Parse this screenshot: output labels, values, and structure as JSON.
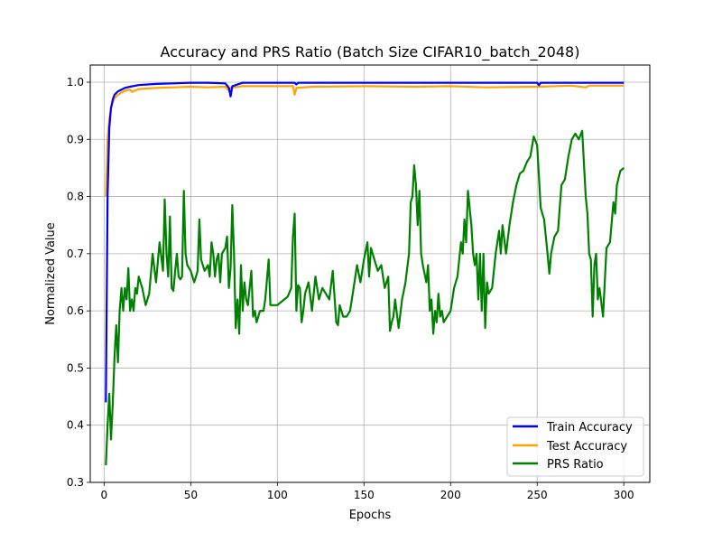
{
  "chart_data": {
    "type": "line",
    "title": "Accuracy and PRS Ratio (Batch Size CIFAR10_batch_2048)",
    "xlabel": "Epochs",
    "ylabel": "Normalized Value",
    "xlim": [
      -8,
      315
    ],
    "ylim": [
      0.3,
      1.03
    ],
    "xticks": [
      0,
      50,
      100,
      150,
      200,
      250,
      300
    ],
    "yticks": [
      0.3,
      0.4,
      0.5,
      0.6,
      0.7,
      0.8,
      0.9,
      1.0
    ],
    "xtick_labels": [
      "0",
      "50",
      "100",
      "150",
      "200",
      "250",
      "300"
    ],
    "ytick_labels": [
      "0.3",
      "0.4",
      "0.5",
      "0.6",
      "0.7",
      "0.8",
      "0.9",
      "1.0"
    ],
    "grid": true,
    "legend_position": "lower-right",
    "series": [
      {
        "name": "Train Accuracy",
        "color": "#0000ff",
        "points": [
          [
            1,
            0.44
          ],
          [
            2,
            0.8
          ],
          [
            3,
            0.92
          ],
          [
            4,
            0.955
          ],
          [
            5,
            0.97
          ],
          [
            6,
            0.978
          ],
          [
            8,
            0.984
          ],
          [
            10,
            0.987
          ],
          [
            12,
            0.99
          ],
          [
            15,
            0.992
          ],
          [
            20,
            0.995
          ],
          [
            30,
            0.997
          ],
          [
            40,
            0.998
          ],
          [
            50,
            0.999
          ],
          [
            60,
            0.999
          ],
          [
            70,
            0.998
          ],
          [
            72,
            0.99
          ],
          [
            73,
            0.975
          ],
          [
            74,
            0.993
          ],
          [
            80,
            0.999
          ],
          [
            100,
            0.999
          ],
          [
            110,
            0.999
          ],
          [
            111,
            0.996
          ],
          [
            112,
            0.999
          ],
          [
            150,
            0.999
          ],
          [
            200,
            0.999
          ],
          [
            250,
            0.999
          ],
          [
            251,
            0.995
          ],
          [
            252,
            0.999
          ],
          [
            300,
            0.999
          ]
        ]
      },
      {
        "name": "Test Accuracy",
        "color": "#ffa500",
        "points": [
          [
            1,
            0.8
          ],
          [
            2,
            0.9
          ],
          [
            3,
            0.935
          ],
          [
            4,
            0.955
          ],
          [
            5,
            0.965
          ],
          [
            6,
            0.972
          ],
          [
            8,
            0.978
          ],
          [
            10,
            0.982
          ],
          [
            12,
            0.985
          ],
          [
            15,
            0.987
          ],
          [
            16,
            0.983
          ],
          [
            20,
            0.988
          ],
          [
            30,
            0.99
          ],
          [
            40,
            0.991
          ],
          [
            50,
            0.992
          ],
          [
            60,
            0.991
          ],
          [
            70,
            0.992
          ],
          [
            72,
            0.985
          ],
          [
            73,
            0.99
          ],
          [
            80,
            0.993
          ],
          [
            100,
            0.993
          ],
          [
            109,
            0.993
          ],
          [
            110,
            0.978
          ],
          [
            111,
            0.99
          ],
          [
            120,
            0.992
          ],
          [
            150,
            0.993
          ],
          [
            180,
            0.992
          ],
          [
            200,
            0.993
          ],
          [
            220,
            0.991
          ],
          [
            250,
            0.992
          ],
          [
            270,
            0.994
          ],
          [
            278,
            0.991
          ],
          [
            280,
            0.994
          ],
          [
            300,
            0.994
          ]
        ]
      },
      {
        "name": "PRS Ratio",
        "color": "#008000",
        "points": [
          [
            1,
            0.33
          ],
          [
            2,
            0.4
          ],
          [
            3,
            0.455
          ],
          [
            4,
            0.375
          ],
          [
            5,
            0.44
          ],
          [
            6,
            0.52
          ],
          [
            7,
            0.575
          ],
          [
            8,
            0.51
          ],
          [
            9,
            0.6
          ],
          [
            10,
            0.64
          ],
          [
            11,
            0.6
          ],
          [
            12,
            0.64
          ],
          [
            13,
            0.62
          ],
          [
            14,
            0.675
          ],
          [
            15,
            0.6
          ],
          [
            16,
            0.62
          ],
          [
            17,
            0.6
          ],
          [
            18,
            0.64
          ],
          [
            19,
            0.63
          ],
          [
            20,
            0.66
          ],
          [
            22,
            0.64
          ],
          [
            24,
            0.61
          ],
          [
            26,
            0.63
          ],
          [
            28,
            0.7
          ],
          [
            30,
            0.65
          ],
          [
            32,
            0.72
          ],
          [
            34,
            0.67
          ],
          [
            35,
            0.795
          ],
          [
            36,
            0.7
          ],
          [
            37,
            0.66
          ],
          [
            38,
            0.765
          ],
          [
            39,
            0.64
          ],
          [
            40,
            0.635
          ],
          [
            41,
            0.67
          ],
          [
            42,
            0.7
          ],
          [
            43,
            0.66
          ],
          [
            44,
            0.655
          ],
          [
            45,
            0.66
          ],
          [
            46,
            0.81
          ],
          [
            47,
            0.7
          ],
          [
            48,
            0.68
          ],
          [
            50,
            0.67
          ],
          [
            52,
            0.65
          ],
          [
            54,
            0.67
          ],
          [
            55,
            0.76
          ],
          [
            56,
            0.69
          ],
          [
            58,
            0.67
          ],
          [
            60,
            0.68
          ],
          [
            61,
            0.66
          ],
          [
            62,
            0.72
          ],
          [
            63,
            0.7
          ],
          [
            64,
            0.66
          ],
          [
            65,
            0.69
          ],
          [
            66,
            0.7
          ],
          [
            67,
            0.65
          ],
          [
            68,
            0.7
          ],
          [
            70,
            0.71
          ],
          [
            71,
            0.73
          ],
          [
            72,
            0.64
          ],
          [
            73,
            0.675
          ],
          [
            74,
            0.785
          ],
          [
            75,
            0.7
          ],
          [
            76,
            0.57
          ],
          [
            77,
            0.62
          ],
          [
            78,
            0.56
          ],
          [
            79,
            0.68
          ],
          [
            80,
            0.6
          ],
          [
            81,
            0.65
          ],
          [
            82,
            0.62
          ],
          [
            83,
            0.61
          ],
          [
            84,
            0.64
          ],
          [
            85,
            0.67
          ],
          [
            86,
            0.59
          ],
          [
            87,
            0.6
          ],
          [
            88,
            0.58
          ],
          [
            90,
            0.6
          ],
          [
            92,
            0.6
          ],
          [
            93,
            0.62
          ],
          [
            95,
            0.69
          ],
          [
            96,
            0.61
          ],
          [
            98,
            0.61
          ],
          [
            100,
            0.61
          ],
          [
            102,
            0.615
          ],
          [
            104,
            0.62
          ],
          [
            106,
            0.625
          ],
          [
            108,
            0.64
          ],
          [
            109,
            0.73
          ],
          [
            110,
            0.77
          ],
          [
            111,
            0.6
          ],
          [
            112,
            0.645
          ],
          [
            113,
            0.64
          ],
          [
            114,
            0.58
          ],
          [
            115,
            0.6
          ],
          [
            116,
            0.63
          ],
          [
            118,
            0.65
          ],
          [
            120,
            0.6
          ],
          [
            122,
            0.66
          ],
          [
            124,
            0.62
          ],
          [
            126,
            0.64
          ],
          [
            128,
            0.63
          ],
          [
            130,
            0.62
          ],
          [
            132,
            0.67
          ],
          [
            134,
            0.58
          ],
          [
            135,
            0.575
          ],
          [
            136,
            0.61
          ],
          [
            138,
            0.59
          ],
          [
            140,
            0.59
          ],
          [
            142,
            0.6
          ],
          [
            144,
            0.64
          ],
          [
            146,
            0.68
          ],
          [
            148,
            0.65
          ],
          [
            150,
            0.69
          ],
          [
            152,
            0.72
          ],
          [
            153,
            0.66
          ],
          [
            154,
            0.71
          ],
          [
            156,
            0.69
          ],
          [
            158,
            0.67
          ],
          [
            160,
            0.68
          ],
          [
            162,
            0.64
          ],
          [
            164,
            0.66
          ],
          [
            165,
            0.565
          ],
          [
            166,
            0.58
          ],
          [
            167,
            0.59
          ],
          [
            168,
            0.62
          ],
          [
            170,
            0.57
          ],
          [
            172,
            0.62
          ],
          [
            174,
            0.65
          ],
          [
            176,
            0.7
          ],
          [
            177,
            0.79
          ],
          [
            178,
            0.8
          ],
          [
            179,
            0.855
          ],
          [
            180,
            0.82
          ],
          [
            181,
            0.75
          ],
          [
            182,
            0.81
          ],
          [
            183,
            0.7
          ],
          [
            184,
            0.68
          ],
          [
            186,
            0.65
          ],
          [
            187,
            0.68
          ],
          [
            188,
            0.6
          ],
          [
            189,
            0.62
          ],
          [
            190,
            0.56
          ],
          [
            191,
            0.6
          ],
          [
            192,
            0.58
          ],
          [
            193,
            0.63
          ],
          [
            194,
            0.59
          ],
          [
            195,
            0.6
          ],
          [
            196,
            0.58
          ],
          [
            198,
            0.59
          ],
          [
            200,
            0.6
          ],
          [
            202,
            0.64
          ],
          [
            204,
            0.66
          ],
          [
            206,
            0.72
          ],
          [
            207,
            0.7
          ],
          [
            208,
            0.76
          ],
          [
            209,
            0.72
          ],
          [
            210,
            0.81
          ],
          [
            211,
            0.78
          ],
          [
            212,
            0.75
          ],
          [
            213,
            0.7
          ],
          [
            214,
            0.68
          ],
          [
            215,
            0.7
          ],
          [
            216,
            0.62
          ],
          [
            217,
            0.7
          ],
          [
            218,
            0.6
          ],
          [
            219,
            0.7
          ],
          [
            220,
            0.57
          ],
          [
            221,
            0.65
          ],
          [
            222,
            0.63
          ],
          [
            224,
            0.64
          ],
          [
            226,
            0.7
          ],
          [
            228,
            0.74
          ],
          [
            229,
            0.7
          ],
          [
            230,
            0.75
          ],
          [
            232,
            0.7
          ],
          [
            234,
            0.75
          ],
          [
            236,
            0.79
          ],
          [
            238,
            0.82
          ],
          [
            240,
            0.84
          ],
          [
            242,
            0.845
          ],
          [
            244,
            0.86
          ],
          [
            246,
            0.87
          ],
          [
            248,
            0.905
          ],
          [
            250,
            0.89
          ],
          [
            252,
            0.78
          ],
          [
            254,
            0.76
          ],
          [
            256,
            0.7
          ],
          [
            257,
            0.665
          ],
          [
            258,
            0.7
          ],
          [
            260,
            0.73
          ],
          [
            262,
            0.74
          ],
          [
            264,
            0.82
          ],
          [
            266,
            0.83
          ],
          [
            268,
            0.87
          ],
          [
            269,
            0.885
          ],
          [
            270,
            0.9
          ],
          [
            272,
            0.91
          ],
          [
            274,
            0.9
          ],
          [
            276,
            0.915
          ],
          [
            278,
            0.8
          ],
          [
            279,
            0.77
          ],
          [
            280,
            0.7
          ],
          [
            281,
            0.69
          ],
          [
            282,
            0.59
          ],
          [
            283,
            0.68
          ],
          [
            284,
            0.7
          ],
          [
            285,
            0.62
          ],
          [
            286,
            0.64
          ],
          [
            288,
            0.59
          ],
          [
            290,
            0.71
          ],
          [
            291,
            0.715
          ],
          [
            292,
            0.72
          ],
          [
            294,
            0.79
          ],
          [
            295,
            0.77
          ],
          [
            296,
            0.82
          ],
          [
            298,
            0.845
          ],
          [
            300,
            0.85
          ]
        ]
      }
    ]
  }
}
